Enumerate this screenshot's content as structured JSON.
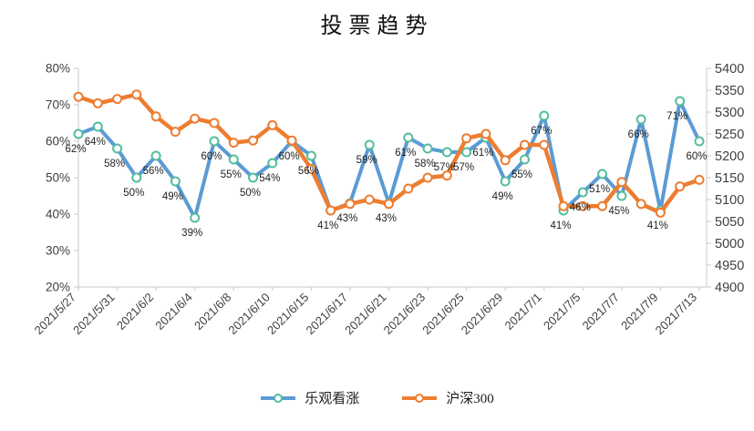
{
  "chart_data": {
    "type": "line",
    "title": "投票趋势",
    "n_points": 33,
    "x_tick_labels": [
      "2021/5/27",
      "2021/5/31",
      "2021/6/2",
      "2021/6/4",
      "2021/6/8",
      "2021/6/10",
      "2021/6/15",
      "2021/6/17",
      "2021/6/21",
      "2021/6/23",
      "2021/6/25",
      "2021/6/29",
      "2021/7/1",
      "2021/7/5",
      "2021/7/7",
      "2021/7/9",
      "2021/7/13"
    ],
    "x_label_every": 2,
    "series": [
      {
        "name": "乐观看涨",
        "axis": "left",
        "color": "#5B9BD5",
        "marker_color": "#53BD9C",
        "labels_visible": true,
        "label_format": "{v}%",
        "values": [
          62,
          64,
          58,
          50,
          56,
          49,
          39,
          60,
          55,
          50,
          54,
          60,
          56,
          41,
          43,
          59,
          43,
          61,
          58,
          57,
          57,
          61,
          49,
          55,
          67,
          41,
          46,
          51,
          45,
          66,
          41,
          71,
          60
        ]
      },
      {
        "name": "沪深300",
        "axis": "right",
        "color": "#ED7D31",
        "marker_color": "#ED7D31",
        "labels_visible": false,
        "values": [
          5335,
          5320,
          5330,
          5340,
          5290,
          5255,
          5285,
          5275,
          5230,
          5235,
          5270,
          5235,
          5170,
          5075,
          5090,
          5100,
          5090,
          5125,
          5150,
          5155,
          5240,
          5250,
          5190,
          5225,
          5225,
          5085,
          5085,
          5085,
          5140,
          5090,
          5070,
          5130,
          5145
        ]
      }
    ],
    "left_axis": {
      "min": 20,
      "max": 80,
      "step": 10,
      "ticks": [
        "80%",
        "70%",
        "60%",
        "50%",
        "40%",
        "30%",
        "20%"
      ]
    },
    "right_axis": {
      "min": 4900,
      "max": 5400,
      "step": 50,
      "ticks": [
        "5400",
        "5350",
        "5300",
        "5250",
        "5200",
        "5150",
        "5100",
        "5050",
        "5000",
        "4950",
        "4900"
      ]
    },
    "legend": {
      "position": "bottom",
      "items": [
        "乐观看涨",
        "沪深300"
      ]
    },
    "grid": false
  }
}
